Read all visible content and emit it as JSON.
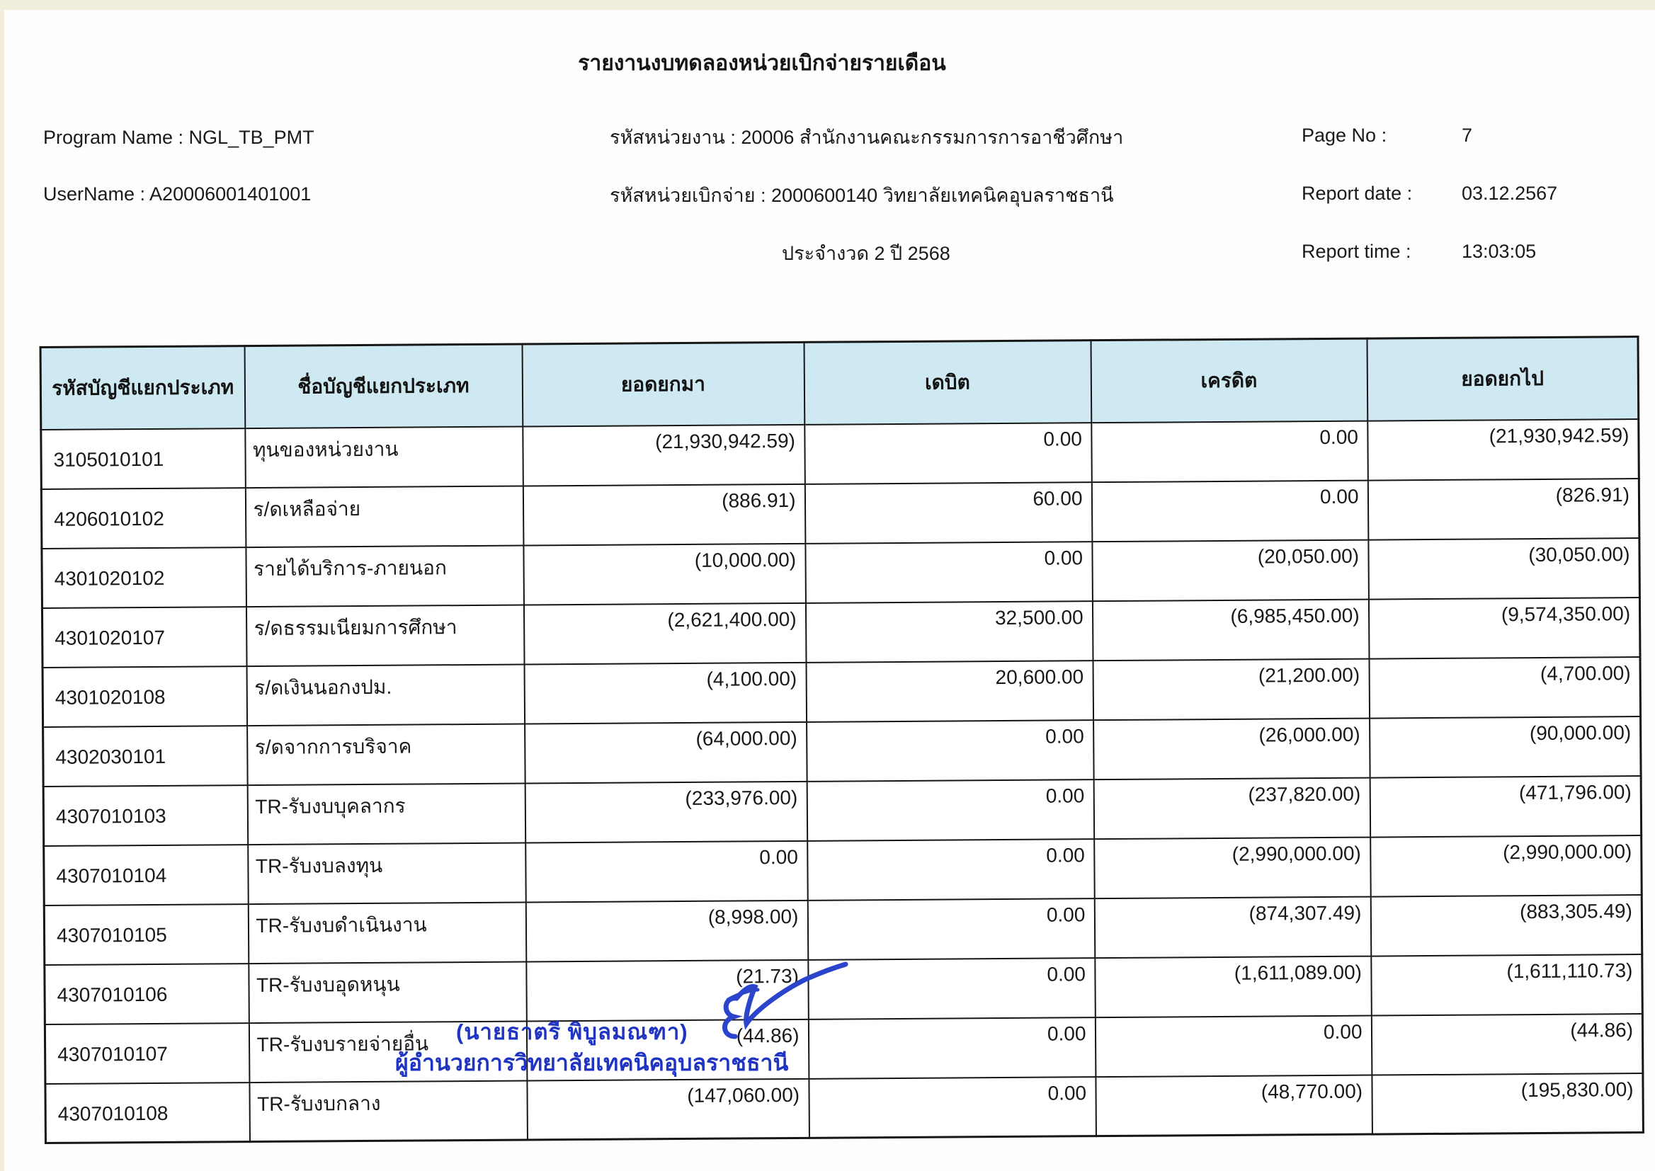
{
  "title": "รายงานงบทดลองหน่วยเบิกจ่ายรายเดือน",
  "meta": {
    "program_name_label": "Program Name : NGL_TB_PMT",
    "username_label": "UserName : A20006001401001",
    "agency_line": "รหัสหน่วยงาน : 20006 สำนักงานคณะกรรมการการอาชีวศึกษา",
    "disburse_unit_line": "รหัสหน่วยเบิกจ่าย : 2000600140 วิทยาลัยเทคนิคอุบลราชธานี",
    "period_line": "ประจำงวด 2 ปี 2568",
    "page_no_label": "Page No :",
    "page_no_value": "7",
    "report_date_label": "Report date :",
    "report_date_value": "03.12.2567",
    "report_time_label": "Report time :",
    "report_time_value": "13:03:05"
  },
  "table": {
    "headers": [
      "รหัสบัญชีแยกประเภท",
      "ชื่อบัญชีแยกประเภท",
      "ยอดยกมา",
      "เดบิต",
      "เครดิต",
      "ยอดยกไป"
    ],
    "rows": [
      [
        "3105010101",
        "ทุนของหน่วยงาน",
        "(21,930,942.59)",
        "0.00",
        "0.00",
        "(21,930,942.59)"
      ],
      [
        "4206010102",
        "ร/ดเหลือจ่าย",
        "(886.91)",
        "60.00",
        "0.00",
        "(826.91)"
      ],
      [
        "4301020102",
        "รายได้บริการ-ภายนอก",
        "(10,000.00)",
        "0.00",
        "(20,050.00)",
        "(30,050.00)"
      ],
      [
        "4301020107",
        "ร/ดธรรมเนียมการศึกษา",
        "(2,621,400.00)",
        "32,500.00",
        "(6,985,450.00)",
        "(9,574,350.00)"
      ],
      [
        "4301020108",
        "ร/ดเงินนอกงปม.",
        "(4,100.00)",
        "20,600.00",
        "(21,200.00)",
        "(4,700.00)"
      ],
      [
        "4302030101",
        "ร/ดจากการบริจาค",
        "(64,000.00)",
        "0.00",
        "(26,000.00)",
        "(90,000.00)"
      ],
      [
        "4307010103",
        "TR-รับงบบุคลากร",
        "(233,976.00)",
        "0.00",
        "(237,820.00)",
        "(471,796.00)"
      ],
      [
        "4307010104",
        "TR-รับงบลงทุน",
        "0.00",
        "0.00",
        "(2,990,000.00)",
        "(2,990,000.00)"
      ],
      [
        "4307010105",
        "TR-รับงบดำเนินงาน",
        "(8,998.00)",
        "0.00",
        "(874,307.49)",
        "(883,305.49)"
      ],
      [
        "4307010106",
        "TR-รับงบอุดหนุน",
        "(21.73)",
        "0.00",
        "(1,611,089.00)",
        "(1,611,110.73)"
      ],
      [
        "4307010107",
        "TR-รับงบรายจ่ายอื่น",
        "(44.86)",
        "0.00",
        "0.00",
        "(44.86)"
      ],
      [
        "4307010108",
        "TR-รับงบกลาง",
        "(147,060.00)",
        "0.00",
        "(48,770.00)",
        "(195,830.00)"
      ]
    ]
  },
  "stamp": {
    "name_line": "(นายธาตรี  พิบูลมณฑา)",
    "title_line": "ผู้อำนวยการวิทยาลัยเทคนิคอุบลราชธานี",
    "ink_color": "#2034c4"
  },
  "colors": {
    "table_header_bg": "#cfe9f2",
    "border": "#161616",
    "scan_edge": "#f1eedb"
  }
}
